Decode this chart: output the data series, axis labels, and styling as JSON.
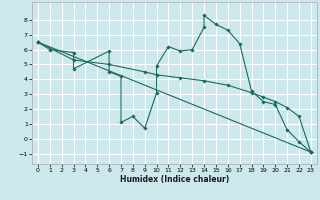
{
  "xlabel": "Humidex (Indice chaleur)",
  "bg_color": "#cce8ec",
  "grid_color": "#ffffff",
  "line_color": "#1a6b5a",
  "xlim": [
    -0.5,
    23.5
  ],
  "ylim": [
    -1.7,
    9.2
  ],
  "xticks": [
    0,
    1,
    2,
    3,
    4,
    5,
    6,
    7,
    8,
    9,
    10,
    11,
    12,
    13,
    14,
    15,
    16,
    17,
    18,
    19,
    20,
    21,
    22,
    23
  ],
  "yticks": [
    -1,
    0,
    1,
    2,
    3,
    4,
    5,
    6,
    7,
    8
  ],
  "line1_x": [
    0,
    1,
    3,
    3,
    6,
    6,
    7,
    7,
    8,
    9,
    10,
    10,
    11,
    12,
    13,
    14,
    14,
    15,
    16,
    17,
    18,
    19,
    20,
    21,
    22,
    23
  ],
  "line1_y": [
    6.5,
    6.0,
    5.8,
    4.7,
    5.9,
    4.5,
    4.2,
    1.1,
    1.5,
    0.7,
    3.1,
    4.9,
    6.2,
    5.9,
    6.0,
    7.5,
    8.3,
    7.7,
    7.3,
    6.4,
    3.2,
    2.5,
    2.3,
    0.6,
    -0.2,
    -0.9
  ],
  "line2_x": [
    0,
    23
  ],
  "line2_y": [
    6.5,
    -0.9
  ],
  "line3_x": [
    0,
    3,
    6,
    9,
    10,
    12,
    14,
    16,
    18,
    19,
    20,
    21,
    22,
    23
  ],
  "line3_y": [
    6.5,
    5.3,
    5.0,
    4.5,
    4.3,
    4.1,
    3.9,
    3.6,
    3.1,
    2.8,
    2.5,
    2.1,
    1.5,
    -0.9
  ]
}
